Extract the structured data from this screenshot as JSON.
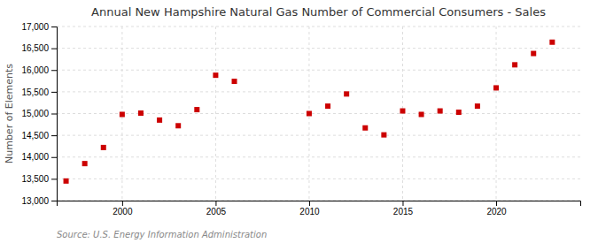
{
  "chart_data": {
    "type": "scatter",
    "title": "Annual New Hampshire Natural Gas Number of Commercial Consumers - Sales",
    "ylabel": "Number of Elements",
    "source": "Source: U.S. Energy Information Administration",
    "x": [
      1997,
      1998,
      1999,
      2000,
      2001,
      2002,
      2003,
      2004,
      2005,
      2006,
      2010,
      2011,
      2012,
      2013,
      2014,
      2015,
      2016,
      2017,
      2018,
      2019,
      2020,
      2021,
      2022,
      2023
    ],
    "values": [
      13450,
      13850,
      14220,
      14980,
      15010,
      14850,
      14720,
      15090,
      15880,
      15740,
      15000,
      15170,
      15450,
      14670,
      14510,
      15060,
      14980,
      15060,
      15030,
      15170,
      15590,
      16120,
      16380,
      16640
    ],
    "color": "#cc0000",
    "marker": "square",
    "xlim": [
      1996.5,
      2024.5
    ],
    "xticks": [
      2000,
      2005,
      2010,
      2015,
      2020
    ],
    "ylim": [
      13000,
      17000
    ],
    "yticks": [
      {
        "value": 13000,
        "label": "13,000"
      },
      {
        "value": 13500,
        "label": "13,500"
      },
      {
        "value": 14000,
        "label": "14,000"
      },
      {
        "value": 14500,
        "label": "14,500"
      },
      {
        "value": 15000,
        "label": "15,000"
      },
      {
        "value": 15500,
        "label": "15,500"
      },
      {
        "value": 16000,
        "label": "16,000"
      },
      {
        "value": 16500,
        "label": "16,500"
      },
      {
        "value": 17000,
        "label": "17,000"
      }
    ],
    "grid": true
  }
}
